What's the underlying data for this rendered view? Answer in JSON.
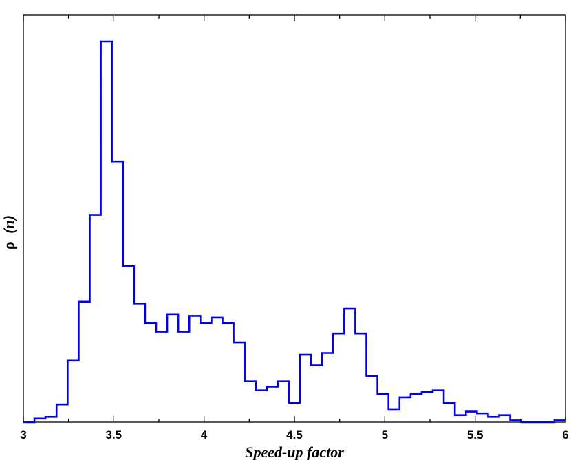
{
  "chart_data": {
    "type": "histogram-step",
    "xlabel": "Speed-up factor",
    "ylabel_symbol": "ρ",
    "ylabel_arg": "(n)",
    "xlim": [
      3,
      6
    ],
    "ylim": [
      0,
      21.5
    ],
    "x_ticks": [
      3,
      3.5,
      4,
      4.5,
      5,
      5.5,
      6
    ],
    "x_tick_labels": [
      "3",
      "3.5",
      "4",
      "4.5",
      "5",
      "5.5",
      "6"
    ],
    "show_y_tick_labels": false,
    "grid": false,
    "series": [
      {
        "color": "#0000ee",
        "bin_width": 0.0612,
        "bin_starts": [
          3.0,
          3.0612,
          3.1224,
          3.1837,
          3.2449,
          3.3061,
          3.3673,
          3.4286,
          3.4898,
          3.551,
          3.6122,
          3.6735,
          3.7347,
          3.7959,
          3.8571,
          3.9184,
          3.9796,
          4.0408,
          4.102,
          4.1633,
          4.2245,
          4.2857,
          4.3469,
          4.4082,
          4.4694,
          4.5306,
          4.5918,
          4.6531,
          4.7143,
          4.7755,
          4.8367,
          4.898,
          4.9592,
          5.0204,
          5.0816,
          5.1429,
          5.2041,
          5.2653,
          5.3265,
          5.3878,
          5.449,
          5.5102,
          5.5714,
          5.6327,
          5.6939,
          5.7551,
          5.8163,
          5.8776,
          5.9388
        ],
        "values": [
          0.0,
          0.2,
          0.3,
          1.0,
          3.5,
          6.8,
          11.7,
          21.5,
          14.7,
          8.8,
          6.7,
          5.6,
          5.1,
          6.1,
          5.1,
          6.0,
          5.6,
          5.9,
          5.6,
          4.5,
          2.3,
          1.8,
          2.0,
          2.3,
          1.1,
          3.8,
          3.2,
          3.9,
          5.0,
          6.4,
          5.0,
          2.6,
          1.6,
          0.7,
          1.4,
          1.6,
          1.7,
          1.8,
          1.1,
          0.4,
          0.6,
          0.5,
          0.3,
          0.4,
          0.1,
          0.0,
          0.0,
          0.0,
          0.1
        ]
      }
    ]
  }
}
